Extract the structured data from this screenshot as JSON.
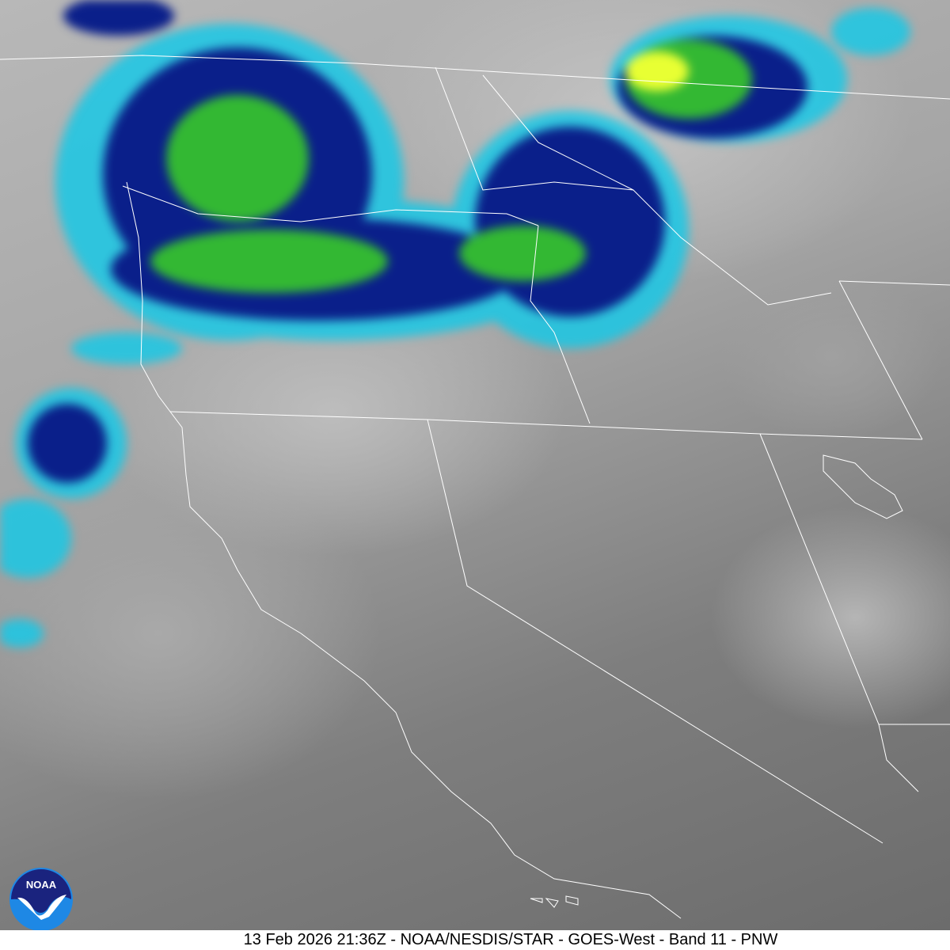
{
  "caption": "13 Feb 2026 21:36Z - NOAA/NESDIS/STAR - GOES-West - Band 11 - PNW",
  "logo": {
    "text": "NOAA",
    "colors": {
      "dark_blue": "#1a237e",
      "light_blue": "#1e88e5"
    }
  },
  "colors": {
    "cold_cloud_green": "#33cc33",
    "coldest_yellow": "#e8ff33",
    "cloud_blue": "#0a1f8a",
    "cloud_cyan": "#19c8e6",
    "border_lines": "#ffffff"
  }
}
